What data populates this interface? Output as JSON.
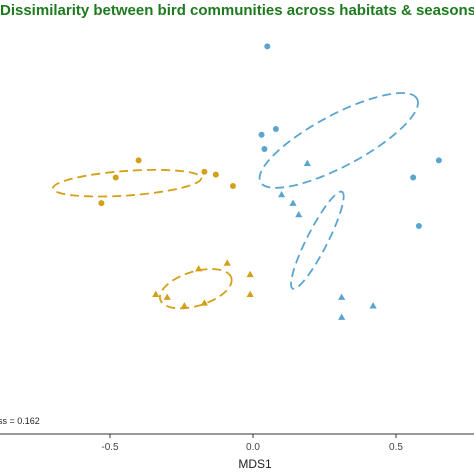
{
  "chart_data": {
    "type": "scatter",
    "title": "Dissimilarity between bird communities across habitats & seasons",
    "xlabel": "MDS1",
    "ylabel": "",
    "x_ticks": [
      -0.5,
      0.0,
      0.5
    ],
    "x_tick_labels": [
      "-0.5",
      "0.0",
      "0.5"
    ],
    "xlim": [
      -0.88,
      0.68
    ],
    "ylim": [
      -0.58,
      0.62
    ],
    "grid": false,
    "annotation": "ss = 0.162",
    "colors": {
      "blue": "#5aa5d0",
      "gold": "#d4a017",
      "title": "#1e7a1e"
    },
    "series": [
      {
        "color": "#5aa5d0",
        "marker": "circle",
        "points": [
          [
            0.05,
            0.56
          ],
          [
            0.08,
            0.27
          ],
          [
            0.03,
            0.25
          ],
          [
            0.04,
            0.2
          ],
          [
            0.65,
            0.16
          ],
          [
            0.56,
            0.1
          ],
          [
            0.58,
            -0.07
          ]
        ],
        "ellipse": {
          "cx": 0.3,
          "cy": 0.23,
          "rx": 0.31,
          "ry": 0.09,
          "angle_deg": 28
        }
      },
      {
        "color": "#5aa5d0",
        "marker": "triangle",
        "points": [
          [
            0.19,
            0.15
          ],
          [
            0.1,
            0.04
          ],
          [
            0.14,
            0.01
          ],
          [
            0.16,
            -0.03
          ],
          [
            0.31,
            -0.32
          ],
          [
            0.42,
            -0.35
          ],
          [
            0.31,
            -0.39
          ]
        ],
        "ellipse": {
          "cx": 0.225,
          "cy": -0.12,
          "rx": 0.19,
          "ry": 0.036,
          "angle_deg": 63
        }
      },
      {
        "color": "#d4a017",
        "marker": "circle",
        "points": [
          [
            -0.4,
            0.16
          ],
          [
            -0.48,
            0.1
          ],
          [
            -0.17,
            0.12
          ],
          [
            -0.13,
            0.11
          ],
          [
            -0.07,
            0.07
          ],
          [
            -0.53,
            0.01
          ]
        ],
        "ellipse": {
          "cx": -0.44,
          "cy": 0.08,
          "rx": 0.26,
          "ry": 0.043,
          "angle_deg": 4
        }
      },
      {
        "color": "#d4a017",
        "marker": "triangle",
        "points": [
          [
            -0.09,
            -0.2
          ],
          [
            -0.19,
            -0.22
          ],
          [
            -0.01,
            -0.24
          ],
          [
            -0.34,
            -0.31
          ],
          [
            -0.3,
            -0.32
          ],
          [
            -0.01,
            -0.31
          ],
          [
            -0.17,
            -0.34
          ],
          [
            -0.24,
            -0.35
          ]
        ],
        "ellipse": {
          "cx": -0.2,
          "cy": -0.29,
          "rx": 0.13,
          "ry": 0.06,
          "angle_deg": 17
        }
      }
    ]
  }
}
